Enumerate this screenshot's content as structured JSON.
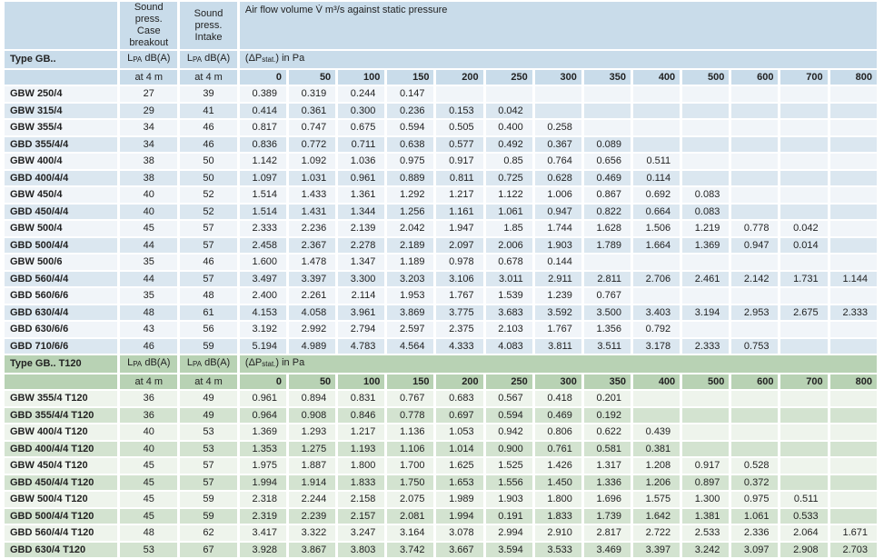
{
  "headers": {
    "sound_case": "Sound press. Case breakout",
    "sound_intake": "Sound press. Intake",
    "airflow": "Air flow volume V̇ m³/s against static pressure",
    "lpa_L": "L",
    "lpa_sub": "PA",
    "lpa_unit": " dB(A)",
    "dp_open": "(ΔP",
    "dp_sub": "stat.",
    "dp_close": ") in Pa",
    "at4m": "at 4 m",
    "pressures": [
      "0",
      "50",
      "100",
      "150",
      "200",
      "250",
      "300",
      "350",
      "400",
      "500",
      "600",
      "700",
      "800"
    ]
  },
  "colors": {
    "blue_header": "#c9dcea",
    "blue_row_a": "#f1f5f9",
    "blue_row_b": "#dbe7f0",
    "green_header": "#b8d2b4",
    "green_row_a": "#eef4ec",
    "green_row_b": "#d3e3d0"
  },
  "sections": [
    {
      "title": "Type GB..",
      "theme": "b",
      "rows": [
        {
          "type": "GBW 250/4",
          "case": "27",
          "intake": "39",
          "values": [
            "0.389",
            "0.319",
            "0.244",
            "0.147",
            "",
            "",
            "",
            "",
            "",
            "",
            "",
            "",
            ""
          ]
        },
        {
          "type": "GBW 315/4",
          "case": "29",
          "intake": "41",
          "values": [
            "0.414",
            "0.361",
            "0.300",
            "0.236",
            "0.153",
            "0.042",
            "",
            "",
            "",
            "",
            "",
            "",
            ""
          ]
        },
        {
          "type": "GBW 355/4",
          "case": "34",
          "intake": "46",
          "values": [
            "0.817",
            "0.747",
            "0.675",
            "0.594",
            "0.505",
            "0.400",
            "0.258",
            "",
            "",
            "",
            "",
            "",
            ""
          ]
        },
        {
          "type": "GBD 355/4/4",
          "case": "34",
          "intake": "46",
          "values": [
            "0.836",
            "0.772",
            "0.711",
            "0.638",
            "0.577",
            "0.492",
            "0.367",
            "0.089",
            "",
            "",
            "",
            "",
            ""
          ]
        },
        {
          "type": "GBW 400/4",
          "case": "38",
          "intake": "50",
          "values": [
            "1.142",
            "1.092",
            "1.036",
            "0.975",
            "0.917",
            "0.85",
            "0.764",
            "0.656",
            "0.511",
            "",
            "",
            "",
            ""
          ]
        },
        {
          "type": "GBD 400/4/4",
          "case": "38",
          "intake": "50",
          "values": [
            "1.097",
            "1.031",
            "0.961",
            "0.889",
            "0.811",
            "0.725",
            "0.628",
            "0.469",
            "0.114",
            "",
            "",
            "",
            ""
          ]
        },
        {
          "type": "GBW 450/4",
          "case": "40",
          "intake": "52",
          "values": [
            "1.514",
            "1.433",
            "1.361",
            "1.292",
            "1.217",
            "1.122",
            "1.006",
            "0.867",
            "0.692",
            "0.083",
            "",
            "",
            ""
          ]
        },
        {
          "type": "GBD 450/4/4",
          "case": "40",
          "intake": "52",
          "values": [
            "1.514",
            "1.431",
            "1.344",
            "1.256",
            "1.161",
            "1.061",
            "0.947",
            "0.822",
            "0.664",
            "0.083",
            "",
            "",
            ""
          ]
        },
        {
          "type": "GBW 500/4",
          "case": "45",
          "intake": "57",
          "values": [
            "2.333",
            "2.236",
            "2.139",
            "2.042",
            "1.947",
            "1.85",
            "1.744",
            "1.628",
            "1.506",
            "1.219",
            "0.778",
            "0.042",
            ""
          ]
        },
        {
          "type": "GBD 500/4/4",
          "case": "44",
          "intake": "57",
          "values": [
            "2.458",
            "2.367",
            "2.278",
            "2.189",
            "2.097",
            "2.006",
            "1.903",
            "1.789",
            "1.664",
            "1.369",
            "0.947",
            "0.014",
            ""
          ]
        },
        {
          "type": "GBW 500/6",
          "case": "35",
          "intake": "46",
          "values": [
            "1.600",
            "1.478",
            "1.347",
            "1.189",
            "0.978",
            "0.678",
            "0.144",
            "",
            "",
            "",
            "",
            "",
            ""
          ]
        },
        {
          "type": "GBD 560/4/4",
          "case": "44",
          "intake": "57",
          "values": [
            "3.497",
            "3.397",
            "3.300",
            "3.203",
            "3.106",
            "3.011",
            "2.911",
            "2.811",
            "2.706",
            "2.461",
            "2.142",
            "1.731",
            "1.144"
          ]
        },
        {
          "type": "GBD 560/6/6",
          "case": "35",
          "intake": "48",
          "values": [
            "2.400",
            "2.261",
            "2.114",
            "1.953",
            "1.767",
            "1.539",
            "1.239",
            "0.767",
            "",
            "",
            "",
            "",
            ""
          ]
        },
        {
          "type": "GBD 630/4/4",
          "case": "48",
          "intake": "61",
          "values": [
            "4.153",
            "4.058",
            "3.961",
            "3.869",
            "3.775",
            "3.683",
            "3.592",
            "3.500",
            "3.403",
            "3.194",
            "2.953",
            "2.675",
            "2.333"
          ]
        },
        {
          "type": "GBD 630/6/6",
          "case": "43",
          "intake": "56",
          "values": [
            "3.192",
            "2.992",
            "2.794",
            "2.597",
            "2.375",
            "2.103",
            "1.767",
            "1.356",
            "0.792",
            "",
            "",
            "",
            ""
          ]
        },
        {
          "type": "GBD 710/6/6",
          "case": "46",
          "intake": "59",
          "values": [
            "5.194",
            "4.989",
            "4.783",
            "4.564",
            "4.333",
            "4.083",
            "3.811",
            "3.511",
            "3.178",
            "2.333",
            "0.753",
            "",
            ""
          ]
        }
      ]
    },
    {
      "title": "Type GB.. T120",
      "theme": "g",
      "rows": [
        {
          "type": "GBW 355/4 T120",
          "case": "36",
          "intake": "49",
          "values": [
            "0.961",
            "0.894",
            "0.831",
            "0.767",
            "0.683",
            "0.567",
            "0.418",
            "0.201",
            "",
            "",
            "",
            "",
            ""
          ]
        },
        {
          "type": "GBD 355/4/4 T120",
          "case": "36",
          "intake": "49",
          "values": [
            "0.964",
            "0.908",
            "0.846",
            "0.778",
            "0.697",
            "0.594",
            "0.469",
            "0.192",
            "",
            "",
            "",
            "",
            ""
          ]
        },
        {
          "type": "GBW 400/4 T120",
          "case": "40",
          "intake": "53",
          "values": [
            "1.369",
            "1.293",
            "1.217",
            "1.136",
            "1.053",
            "0.942",
            "0.806",
            "0.622",
            "0.439",
            "",
            "",
            "",
            ""
          ]
        },
        {
          "type": "GBD 400/4/4 T120",
          "case": "40",
          "intake": "53",
          "values": [
            "1.353",
            "1.275",
            "1.193",
            "1.106",
            "1.014",
            "0.900",
            "0.761",
            "0.581",
            "0.381",
            "",
            "",
            "",
            ""
          ]
        },
        {
          "type": "GBW 450/4 T120",
          "case": "45",
          "intake": "57",
          "values": [
            "1.975",
            "1.887",
            "1.800",
            "1.700",
            "1.625",
            "1.525",
            "1.426",
            "1.317",
            "1.208",
            "0.917",
            "0.528",
            "",
            ""
          ]
        },
        {
          "type": "GBD 450/4/4 T120",
          "case": "45",
          "intake": "57",
          "values": [
            "1.994",
            "1.914",
            "1.833",
            "1.750",
            "1.653",
            "1.556",
            "1.450",
            "1.336",
            "1.206",
            "0.897",
            "0.372",
            "",
            ""
          ]
        },
        {
          "type": "GBW 500/4 T120",
          "case": "45",
          "intake": "59",
          "values": [
            "2.318",
            "2.244",
            "2.158",
            "2.075",
            "1.989",
            "1.903",
            "1.800",
            "1.696",
            "1.575",
            "1.300",
            "0.975",
            "0.511",
            ""
          ]
        },
        {
          "type": "GBD 500/4/4 T120",
          "case": "45",
          "intake": "59",
          "values": [
            "2.319",
            "2.239",
            "2.157",
            "2.081",
            "1.994",
            "0.191",
            "1.833",
            "1.739",
            "1.642",
            "1.381",
            "1.061",
            "0.533",
            ""
          ]
        },
        {
          "type": "GBD 560/4/4 T120",
          "case": "48",
          "intake": "62",
          "values": [
            "3.417",
            "3.322",
            "3.247",
            "3.164",
            "3.078",
            "2.994",
            "2.910",
            "2.817",
            "2.722",
            "2.533",
            "2.336",
            "2.064",
            "1.671"
          ]
        },
        {
          "type": "GBD 630/4 T120",
          "case": "53",
          "intake": "67",
          "values": [
            "3.928",
            "3.867",
            "3.803",
            "3.742",
            "3.667",
            "3.594",
            "3.533",
            "3.469",
            "3.397",
            "3.242",
            "3.097",
            "2.908",
            "2.703"
          ]
        }
      ]
    }
  ]
}
